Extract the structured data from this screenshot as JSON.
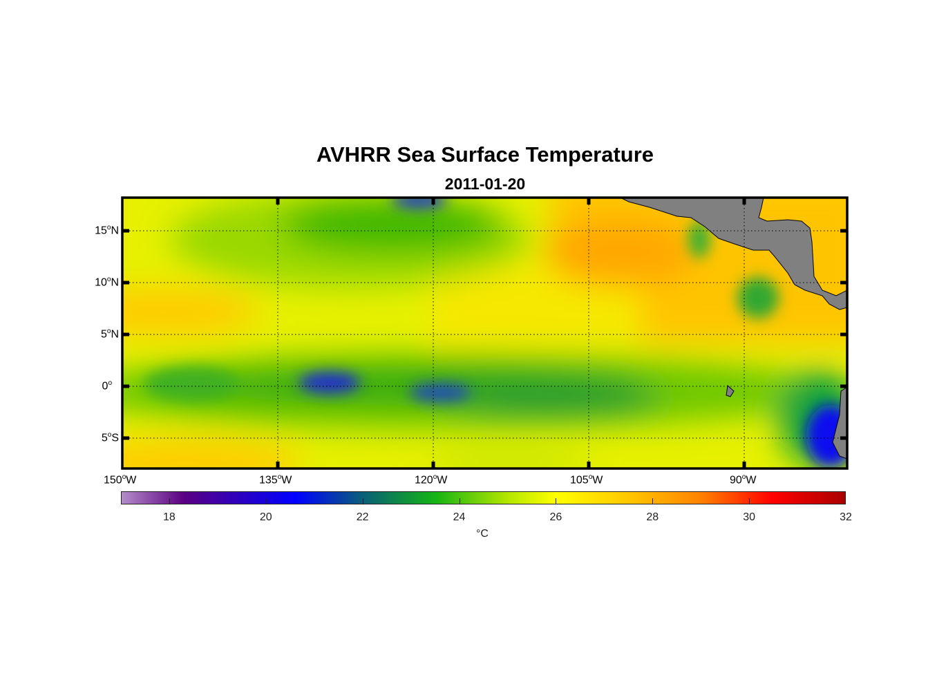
{
  "title": "AVHRR Sea Surface Temperature",
  "subtitle": "2011-01-20",
  "chart_data": {
    "type": "heatmap",
    "title": "AVHRR Sea Surface Temperature",
    "subtitle": "2011-01-20",
    "xlabel": "",
    "ylabel": "",
    "xlim_deg_lon": [
      -150,
      -83.4
    ],
    "ylim_deg_lat": [
      -7.9,
      18.2
    ],
    "grid": true,
    "x_ticks": [
      {
        "value": -150,
        "deg": "150",
        "hemi": "W"
      },
      {
        "value": -135,
        "deg": "135",
        "hemi": "W"
      },
      {
        "value": -120,
        "deg": "120",
        "hemi": "W"
      },
      {
        "value": -105,
        "deg": "105",
        "hemi": "W"
      },
      {
        "value": -90,
        "deg": "90",
        "hemi": "W"
      }
    ],
    "y_ticks": [
      {
        "value": 15,
        "deg": "15",
        "hemi": "N"
      },
      {
        "value": 10,
        "deg": "10",
        "hemi": "N"
      },
      {
        "value": 5,
        "deg": "5",
        "hemi": "N"
      },
      {
        "value": 0,
        "deg": "0",
        "hemi": ""
      },
      {
        "value": -5,
        "deg": "5",
        "hemi": "S"
      }
    ],
    "colorbar": {
      "range": [
        17,
        32
      ],
      "ticks": [
        "18",
        "20",
        "22",
        "24",
        "26",
        "28",
        "30",
        "32"
      ],
      "label": "°C",
      "stops": [
        [
          17,
          "#b48cc8"
        ],
        [
          18.3,
          "#5a0082"
        ],
        [
          20.6,
          "#0000ff"
        ],
        [
          22,
          "#0a5f78"
        ],
        [
          23.5,
          "#14b414"
        ],
        [
          25,
          "#b4e600"
        ],
        [
          26,
          "#ffff00"
        ],
        [
          27.5,
          "#ffc800"
        ],
        [
          29,
          "#ff8200"
        ],
        [
          30.5,
          "#ff0000"
        ],
        [
          32,
          "#aa0000"
        ]
      ]
    }
  }
}
